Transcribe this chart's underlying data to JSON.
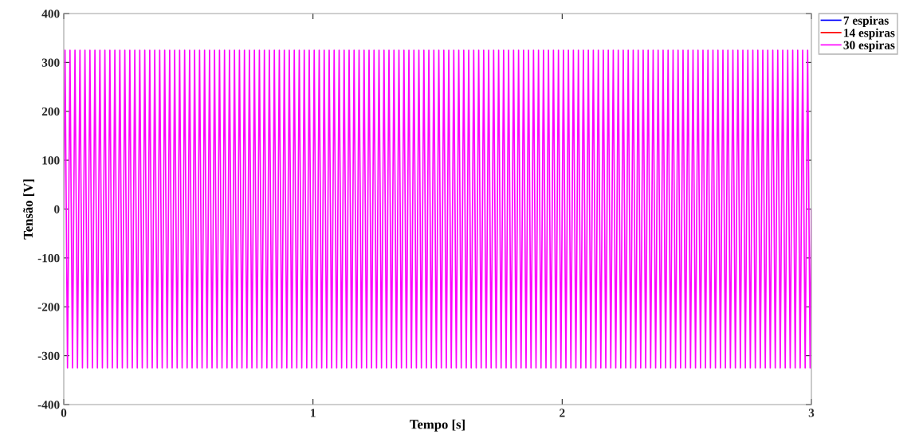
{
  "chart_data": {
    "type": "line",
    "xlabel": "Tempo [s]",
    "ylabel": "Tensão [V]",
    "xlim": [
      0,
      3
    ],
    "xticks": [
      0,
      1,
      2,
      3
    ],
    "ylim": [
      -400,
      400
    ],
    "yticks": [
      -400,
      -300,
      -200,
      -100,
      0,
      100,
      200,
      300,
      400
    ],
    "grid": false,
    "legend": "top right",
    "marker": "none",
    "line_style": "solid",
    "x": [
      0,
      0.005,
      0.015,
      0.025,
      0.035,
      0.045,
      0.055,
      0.065,
      0.075,
      0.085,
      0.095,
      0.105,
      0.115,
      0.125,
      0.135,
      0.145,
      0.155,
      0.165,
      0.175,
      0.185,
      0.195,
      0.205,
      0.215,
      0.225,
      0.235,
      0.245,
      0.255,
      0.265,
      0.275,
      0.285,
      0.295,
      0.305,
      0.315,
      0.325,
      0.335,
      0.345,
      0.355,
      0.365,
      0.375,
      0.385,
      0.395,
      0.405,
      0.415,
      0.425,
      0.435,
      0.445,
      0.455,
      0.465,
      0.475,
      0.485,
      0.495,
      0.505,
      0.515,
      0.525,
      0.535,
      0.545,
      0.555,
      0.565,
      0.575,
      0.585,
      0.595,
      0.605,
      0.615,
      0.625,
      0.635,
      0.645,
      0.655,
      0.665,
      0.675,
      0.685,
      0.695,
      0.705,
      0.715,
      0.725,
      0.735,
      0.745,
      0.755,
      0.765,
      0.775,
      0.785,
      0.795,
      0.805,
      0.815,
      0.825,
      0.835,
      0.845,
      0.855,
      0.865,
      0.875,
      0.885,
      0.895,
      0.905,
      0.915,
      0.925,
      0.935,
      0.945,
      0.955,
      0.965,
      0.975,
      0.985,
      0.995,
      1.005,
      1.015,
      1.025,
      1.035,
      1.045,
      1.055,
      1.065,
      1.075,
      1.085,
      1.095,
      1.105,
      1.115,
      1.125,
      1.135,
      1.145,
      1.155,
      1.165,
      1.175,
      1.185,
      1.195,
      1.205,
      1.215,
      1.225,
      1.235,
      1.245,
      1.255,
      1.265,
      1.275,
      1.285,
      1.295,
      1.305,
      1.315,
      1.325,
      1.335,
      1.345,
      1.355,
      1.365,
      1.375,
      1.385,
      1.395,
      1.405,
      1.415,
      1.425,
      1.435,
      1.445,
      1.455,
      1.465,
      1.475,
      1.485,
      1.495,
      1.505,
      1.515,
      1.525,
      1.535,
      1.545,
      1.555,
      1.565,
      1.575,
      1.585,
      1.595,
      1.605,
      1.615,
      1.625,
      1.635,
      1.645,
      1.655,
      1.665,
      1.675,
      1.685,
      1.695,
      1.705,
      1.715,
      1.725,
      1.735,
      1.745,
      1.755,
      1.765,
      1.775,
      1.785,
      1.795,
      1.805,
      1.815,
      1.825,
      1.835,
      1.845,
      1.855,
      1.865,
      1.875,
      1.885,
      1.895,
      1.905,
      1.915,
      1.925,
      1.935,
      1.945,
      1.955,
      1.965,
      1.975,
      1.985,
      1.995,
      2.005,
      2.015,
      2.025,
      2.035,
      2.045,
      2.055,
      2.065,
      2.075,
      2.085,
      2.095,
      2.105,
      2.115,
      2.125,
      2.135,
      2.145,
      2.155,
      2.165,
      2.175,
      2.185,
      2.195,
      2.205,
      2.215,
      2.225,
      2.235,
      2.245,
      2.255,
      2.265,
      2.275,
      2.285,
      2.295,
      2.305,
      2.315,
      2.325,
      2.335,
      2.345,
      2.355,
      2.365,
      2.375,
      2.385,
      2.395,
      2.405,
      2.415,
      2.425,
      2.435,
      2.445,
      2.455,
      2.465,
      2.475,
      2.485,
      2.495,
      2.505,
      2.515,
      2.525,
      2.535,
      2.545,
      2.555,
      2.565,
      2.575,
      2.585,
      2.595,
      2.605,
      2.615,
      2.625,
      2.635,
      2.645,
      2.655,
      2.665,
      2.675,
      2.685,
      2.695,
      2.705,
      2.715,
      2.725,
      2.735,
      2.745,
      2.755,
      2.765,
      2.775,
      2.785,
      2.795,
      2.805,
      2.815,
      2.825,
      2.835,
      2.845,
      2.855,
      2.865,
      2.875,
      2.885,
      2.895,
      2.905,
      2.915,
      2.925,
      2.935,
      2.945,
      2.955,
      2.965,
      2.975,
      2.985,
      2.995,
      3
    ],
    "series": [
      {
        "name": "7 espiras",
        "color": "#0000ff",
        "values": [
          null,
          null,
          null,
          null,
          null,
          null,
          null,
          null,
          null,
          null,
          null,
          null,
          null,
          null,
          null,
          null,
          null,
          null,
          null,
          null,
          null,
          null,
          null,
          null,
          null,
          null,
          null,
          null,
          null,
          null,
          null,
          null,
          null,
          null,
          null,
          null,
          null,
          null,
          null,
          null,
          null,
          null,
          null,
          null,
          null,
          null,
          null,
          null,
          null,
          null,
          null,
          null,
          null,
          null,
          null,
          null,
          null,
          null,
          null,
          null,
          null,
          null,
          null,
          null,
          null,
          null,
          null,
          null,
          null,
          null,
          null,
          null,
          null,
          null,
          null,
          null,
          null,
          null,
          null,
          null,
          null,
          null,
          null,
          null,
          null,
          null,
          null,
          null,
          null,
          null,
          null,
          null,
          null,
          null,
          null,
          null,
          null,
          null,
          null,
          null,
          null,
          null,
          null,
          null,
          null,
          null,
          null,
          null,
          null,
          null,
          null,
          null,
          null,
          null,
          null,
          null,
          null,
          null,
          null,
          null,
          null,
          null,
          null,
          null,
          null,
          null,
          null,
          null,
          null,
          null,
          null,
          null,
          null,
          null,
          null,
          null,
          null,
          null,
          null,
          null,
          null,
          null,
          null,
          null,
          null,
          null,
          null,
          null,
          null,
          null,
          null,
          null,
          null,
          null,
          null,
          null,
          null,
          null,
          null,
          null,
          null,
          null,
          null,
          null,
          null,
          null,
          null,
          null,
          null,
          null,
          null,
          null,
          null,
          null,
          null,
          null,
          null,
          null,
          null,
          null,
          null,
          null,
          null,
          null,
          null,
          null,
          null,
          null,
          null,
          null,
          null,
          null,
          null,
          null,
          null,
          null,
          null,
          null,
          null,
          null,
          null,
          null,
          null,
          null,
          null,
          null,
          null,
          null,
          null,
          null,
          null,
          null,
          null,
          null,
          null,
          null,
          null,
          null,
          null,
          null,
          null,
          null,
          null,
          null,
          null,
          null,
          null,
          null,
          null,
          null,
          null,
          null,
          null,
          null,
          null,
          null,
          null,
          null,
          null,
          null,
          null,
          null,
          null,
          null,
          null,
          null,
          null,
          null,
          null,
          null,
          null,
          null,
          null,
          null,
          null,
          null,
          null,
          null,
          null,
          null,
          null,
          null,
          null,
          null,
          null,
          null,
          null,
          null,
          null,
          null,
          null,
          null,
          null,
          null,
          null,
          null,
          null,
          null,
          null,
          null,
          null,
          null,
          null,
          null,
          null,
          null,
          null,
          null,
          null,
          null,
          null,
          null,
          null,
          null,
          null,
          null,
          null,
          null,
          null,
          null,
          null,
          null
        ]
      },
      {
        "name": "14 espiras",
        "color": "#ff0000",
        "values": [
          null,
          null,
          null,
          null,
          null,
          null,
          null,
          null,
          null,
          null,
          null,
          null,
          null,
          null,
          null,
          null,
          null,
          null,
          null,
          null,
          null,
          null,
          null,
          null,
          null,
          null,
          null,
          null,
          null,
          null,
          null,
          null,
          null,
          null,
          null,
          null,
          null,
          null,
          null,
          null,
          null,
          null,
          null,
          null,
          null,
          null,
          null,
          null,
          null,
          null,
          null,
          null,
          null,
          null,
          null,
          null,
          null,
          null,
          null,
          null,
          null,
          null,
          null,
          null,
          null,
          null,
          null,
          null,
          null,
          null,
          null,
          null,
          null,
          null,
          null,
          null,
          null,
          null,
          null,
          null,
          null,
          null,
          null,
          null,
          null,
          null,
          null,
          null,
          null,
          null,
          null,
          null,
          null,
          null,
          null,
          null,
          null,
          null,
          null,
          null,
          null,
          null,
          null,
          null,
          null,
          null,
          null,
          null,
          null,
          null,
          null,
          null,
          null,
          null,
          null,
          null,
          null,
          null,
          null,
          null,
          null,
          null,
          null,
          null,
          null,
          null,
          null,
          null,
          null,
          null,
          null,
          null,
          null,
          null,
          null,
          null,
          null,
          null,
          null,
          null,
          null,
          null,
          null,
          null,
          null,
          null,
          null,
          null,
          null,
          null,
          null,
          null,
          null,
          null,
          null,
          null,
          null,
          null,
          null,
          null,
          null,
          null,
          null,
          null,
          null,
          null,
          null,
          null,
          null,
          null,
          null,
          null,
          null,
          null,
          null,
          null,
          null,
          null,
          null,
          null,
          null,
          null,
          null,
          null,
          null,
          null,
          null,
          null,
          null,
          null,
          null,
          null,
          null,
          null,
          null,
          null,
          null,
          null,
          null,
          null,
          null,
          null,
          null,
          null,
          null,
          null,
          null,
          null,
          null,
          null,
          null,
          null,
          null,
          null,
          null,
          null,
          null,
          null,
          null,
          null,
          null,
          null,
          null,
          null,
          null,
          null,
          null,
          null,
          null,
          null,
          null,
          null,
          null,
          null,
          null,
          null,
          null,
          null,
          null,
          null,
          null,
          null,
          null,
          null,
          null,
          null,
          null,
          null,
          null,
          null,
          null,
          null,
          null,
          null,
          null,
          null,
          null,
          null,
          null,
          null,
          null,
          null,
          null,
          null,
          null,
          null,
          null,
          null,
          null,
          null,
          null,
          null,
          null,
          null,
          null,
          null,
          null,
          null,
          null,
          null,
          null,
          null,
          null,
          null,
          null,
          null,
          null,
          null,
          null,
          null,
          null,
          null,
          null,
          null,
          null,
          null,
          null,
          null,
          null,
          null,
          null,
          null
        ]
      },
      {
        "name": "30 espiras",
        "color": "#ff00ff",
        "values": [
          0,
          325,
          -325,
          325,
          -325,
          325,
          -325,
          325,
          -325,
          325,
          -325,
          325,
          -325,
          325,
          -325,
          325,
          -325,
          325,
          -325,
          325,
          -325,
          325,
          -325,
          325,
          -325,
          325,
          -325,
          325,
          -325,
          325,
          -325,
          325,
          -325,
          325,
          -325,
          325,
          -325,
          325,
          -325,
          325,
          -325,
          325,
          -325,
          325,
          -325,
          325,
          -325,
          325,
          -325,
          325,
          -325,
          325,
          -325,
          325,
          -325,
          325,
          -325,
          325,
          -325,
          325,
          -325,
          325,
          -325,
          325,
          -325,
          325,
          -325,
          325,
          -325,
          325,
          -325,
          325,
          -325,
          325,
          -325,
          325,
          -325,
          325,
          -325,
          325,
          -325,
          325,
          -325,
          325,
          -325,
          325,
          -325,
          325,
          -325,
          325,
          -325,
          325,
          -325,
          325,
          -325,
          325,
          -325,
          325,
          -325,
          325,
          -325,
          325,
          -325,
          325,
          -325,
          325,
          -325,
          325,
          -325,
          325,
          -325,
          325,
          -325,
          325,
          -325,
          325,
          -325,
          325,
          -325,
          325,
          -325,
          325,
          -325,
          325,
          -325,
          325,
          -325,
          325,
          -325,
          325,
          -325,
          325,
          -325,
          325,
          -325,
          325,
          -325,
          325,
          -325,
          325,
          -325,
          325,
          -325,
          325,
          -325,
          325,
          -325,
          325,
          -325,
          325,
          -325,
          325,
          -325,
          325,
          -325,
          325,
          -325,
          325,
          -325,
          325,
          -325,
          325,
          -325,
          325,
          -325,
          325,
          -325,
          325,
          -325,
          325,
          -325,
          325,
          -325,
          325,
          -325,
          325,
          -325,
          325,
          -325,
          325,
          -325,
          325,
          -325,
          325,
          -325,
          325,
          -325,
          325,
          -325,
          325,
          -325,
          325,
          -325,
          325,
          -325,
          325,
          -325,
          325,
          -325,
          325,
          -325,
          325,
          -325,
          325,
          -325,
          325,
          -325,
          325,
          -325,
          325,
          -325,
          325,
          -325,
          325,
          -325,
          325,
          -325,
          325,
          -325,
          325,
          -325,
          325,
          -325,
          325,
          -325,
          325,
          -325,
          325,
          -325,
          325,
          -325,
          325,
          -325,
          325,
          -325,
          325,
          -325,
          325,
          -325,
          325,
          -325,
          325,
          -325,
          325,
          -325,
          325,
          -325,
          325,
          -325,
          325,
          -325,
          325,
          -325,
          325,
          -325,
          325,
          -325,
          325,
          -325,
          325,
          -325,
          325,
          -325,
          325,
          -325,
          325,
          -325,
          325,
          -325,
          325,
          -325,
          325,
          -325,
          325,
          -325,
          325,
          -325,
          325,
          -325,
          325,
          -325,
          325,
          -325,
          325,
          -325,
          325,
          -325,
          325,
          -325,
          325,
          -325,
          325,
          -325,
          325,
          -325,
          325,
          -325,
          325,
          -325,
          325,
          -325,
          0
        ]
      }
    ]
  }
}
